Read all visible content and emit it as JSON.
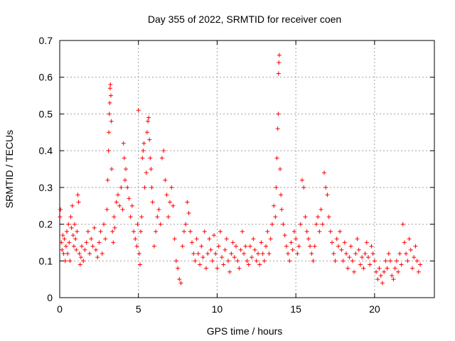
{
  "chart_data": {
    "type": "scatter",
    "title": "Day 355 of 2022, SRMTID for receiver coen",
    "xlabel": "GPS time / hours",
    "ylabel": "SRMTID / TECUs",
    "xlim": [
      0,
      23.8
    ],
    "ylim": [
      0,
      0.7
    ],
    "xticks": [
      0,
      5,
      10,
      15,
      20
    ],
    "yticks": [
      0,
      0.1,
      0.2,
      0.3,
      0.4,
      0.5,
      0.6,
      0.7
    ],
    "xtick_labels": [
      "0",
      "5",
      "10",
      "15",
      "20"
    ],
    "ytick_labels": [
      "0",
      "0.1",
      "0.2",
      "0.3",
      "0.4",
      "0.5",
      "0.6",
      "0.7"
    ],
    "grid": true,
    "marker": "+",
    "colors": {
      "points": "#ff0000",
      "axes": "#000000",
      "grid": "#a0a0a0"
    },
    "points": [
      [
        0.02,
        0.22
      ],
      [
        0.05,
        0.24
      ],
      [
        0.1,
        0.15
      ],
      [
        0.15,
        0.13
      ],
      [
        0.2,
        0.17
      ],
      [
        0.25,
        0.12
      ],
      [
        0.3,
        0.16
      ],
      [
        0.35,
        0.1
      ],
      [
        0.4,
        0.14
      ],
      [
        0.45,
        0.18
      ],
      [
        0.5,
        0.12
      ],
      [
        0.55,
        0.2
      ],
      [
        0.6,
        0.15
      ],
      [
        0.65,
        0.1
      ],
      [
        0.7,
        0.22
      ],
      [
        0.75,
        0.19
      ],
      [
        0.8,
        0.25
      ],
      [
        0.85,
        0.17
      ],
      [
        0.9,
        0.14
      ],
      [
        0.95,
        0.2
      ],
      [
        1.0,
        0.16
      ],
      [
        1.05,
        0.13
      ],
      [
        1.1,
        0.18
      ],
      [
        1.15,
        0.28
      ],
      [
        1.2,
        0.26
      ],
      [
        1.25,
        0.12
      ],
      [
        1.3,
        0.09
      ],
      [
        1.35,
        0.11
      ],
      [
        1.4,
        0.14
      ],
      [
        1.5,
        0.1
      ],
      [
        1.6,
        0.13
      ],
      [
        1.7,
        0.15
      ],
      [
        1.8,
        0.18
      ],
      [
        1.9,
        0.12
      ],
      [
        2.0,
        0.16
      ],
      [
        2.1,
        0.14
      ],
      [
        2.2,
        0.19
      ],
      [
        2.3,
        0.13
      ],
      [
        2.4,
        0.11
      ],
      [
        2.5,
        0.15
      ],
      [
        2.6,
        0.18
      ],
      [
        2.7,
        0.12
      ],
      [
        2.8,
        0.2
      ],
      [
        2.9,
        0.16
      ],
      [
        3.0,
        0.24
      ],
      [
        3.05,
        0.32
      ],
      [
        3.1,
        0.4
      ],
      [
        3.12,
        0.45
      ],
      [
        3.15,
        0.5
      ],
      [
        3.18,
        0.53
      ],
      [
        3.2,
        0.57
      ],
      [
        3.22,
        0.58
      ],
      [
        3.25,
        0.55
      ],
      [
        3.28,
        0.48
      ],
      [
        3.3,
        0.35
      ],
      [
        3.35,
        0.18
      ],
      [
        3.4,
        0.15
      ],
      [
        3.45,
        0.22
      ],
      [
        3.5,
        0.19
      ],
      [
        3.6,
        0.26
      ],
      [
        3.7,
        0.28
      ],
      [
        3.8,
        0.25
      ],
      [
        3.9,
        0.3
      ],
      [
        4.0,
        0.24
      ],
      [
        4.05,
        0.42
      ],
      [
        4.1,
        0.38
      ],
      [
        4.15,
        0.32
      ],
      [
        4.2,
        0.35
      ],
      [
        4.3,
        0.3
      ],
      [
        4.4,
        0.27
      ],
      [
        4.5,
        0.22
      ],
      [
        4.6,
        0.25
      ],
      [
        4.7,
        0.18
      ],
      [
        4.8,
        0.16
      ],
      [
        4.9,
        0.14
      ],
      [
        4.95,
        0.2
      ],
      [
        5.0,
        0.51
      ],
      [
        5.05,
        0.12
      ],
      [
        5.1,
        0.09
      ],
      [
        5.15,
        0.18
      ],
      [
        5.2,
        0.22
      ],
      [
        5.25,
        0.38
      ],
      [
        5.3,
        0.4
      ],
      [
        5.35,
        0.42
      ],
      [
        5.4,
        0.3
      ],
      [
        5.5,
        0.34
      ],
      [
        5.55,
        0.45
      ],
      [
        5.6,
        0.48
      ],
      [
        5.65,
        0.49
      ],
      [
        5.7,
        0.43
      ],
      [
        5.75,
        0.38
      ],
      [
        5.8,
        0.35
      ],
      [
        5.85,
        0.3
      ],
      [
        5.9,
        0.26
      ],
      [
        6.0,
        0.14
      ],
      [
        6.1,
        0.18
      ],
      [
        6.2,
        0.22
      ],
      [
        6.3,
        0.24
      ],
      [
        6.4,
        0.2
      ],
      [
        6.5,
        0.38
      ],
      [
        6.6,
        0.4
      ],
      [
        6.7,
        0.32
      ],
      [
        6.8,
        0.28
      ],
      [
        6.9,
        0.22
      ],
      [
        7.0,
        0.26
      ],
      [
        7.1,
        0.3
      ],
      [
        7.2,
        0.25
      ],
      [
        7.3,
        0.16
      ],
      [
        7.4,
        0.1
      ],
      [
        7.5,
        0.08
      ],
      [
        7.6,
        0.05
      ],
      [
        7.7,
        0.04
      ],
      [
        7.8,
        0.14
      ],
      [
        7.9,
        0.18
      ],
      [
        8.0,
        0.2
      ],
      [
        8.1,
        0.26
      ],
      [
        8.2,
        0.23
      ],
      [
        8.3,
        0.18
      ],
      [
        8.4,
        0.15
      ],
      [
        8.5,
        0.12
      ],
      [
        8.6,
        0.1
      ],
      [
        8.7,
        0.16
      ],
      [
        8.8,
        0.12
      ],
      [
        8.9,
        0.09
      ],
      [
        9.0,
        0.14
      ],
      [
        9.1,
        0.11
      ],
      [
        9.2,
        0.18
      ],
      [
        9.3,
        0.08
      ],
      [
        9.4,
        0.12
      ],
      [
        9.5,
        0.16
      ],
      [
        9.6,
        0.13
      ],
      [
        9.7,
        0.1
      ],
      [
        9.8,
        0.17
      ],
      [
        9.9,
        0.12
      ],
      [
        10.0,
        0.08
      ],
      [
        10.1,
        0.14
      ],
      [
        10.2,
        0.18
      ],
      [
        10.3,
        0.11
      ],
      [
        10.4,
        0.09
      ],
      [
        10.5,
        0.13
      ],
      [
        10.6,
        0.16
      ],
      [
        10.7,
        0.1
      ],
      [
        10.8,
        0.07
      ],
      [
        10.9,
        0.12
      ],
      [
        11.0,
        0.15
      ],
      [
        11.1,
        0.11
      ],
      [
        11.2,
        0.14
      ],
      [
        11.3,
        0.1
      ],
      [
        11.4,
        0.08
      ],
      [
        11.5,
        0.13
      ],
      [
        11.6,
        0.18
      ],
      [
        11.7,
        0.12
      ],
      [
        11.8,
        0.14
      ],
      [
        11.9,
        0.1
      ],
      [
        12.0,
        0.09
      ],
      [
        12.1,
        0.14
      ],
      [
        12.2,
        0.11
      ],
      [
        12.3,
        0.16
      ],
      [
        12.4,
        0.13
      ],
      [
        12.5,
        0.1
      ],
      [
        12.6,
        0.12
      ],
      [
        12.7,
        0.09
      ],
      [
        12.8,
        0.15
      ],
      [
        12.9,
        0.12
      ],
      [
        13.0,
        0.1
      ],
      [
        13.1,
        0.14
      ],
      [
        13.2,
        0.18
      ],
      [
        13.3,
        0.12
      ],
      [
        13.4,
        0.16
      ],
      [
        13.5,
        0.2
      ],
      [
        13.6,
        0.25
      ],
      [
        13.7,
        0.22
      ],
      [
        13.75,
        0.3
      ],
      [
        13.8,
        0.38
      ],
      [
        13.85,
        0.46
      ],
      [
        13.88,
        0.5
      ],
      [
        13.9,
        0.61
      ],
      [
        13.92,
        0.64
      ],
      [
        13.95,
        0.66
      ],
      [
        14.0,
        0.35
      ],
      [
        14.05,
        0.28
      ],
      [
        14.1,
        0.24
      ],
      [
        14.2,
        0.2
      ],
      [
        14.3,
        0.17
      ],
      [
        14.4,
        0.14
      ],
      [
        14.5,
        0.12
      ],
      [
        14.6,
        0.1
      ],
      [
        14.7,
        0.15
      ],
      [
        14.8,
        0.13
      ],
      [
        14.9,
        0.18
      ],
      [
        15.0,
        0.16
      ],
      [
        15.1,
        0.12
      ],
      [
        15.2,
        0.14
      ],
      [
        15.3,
        0.2
      ],
      [
        15.4,
        0.32
      ],
      [
        15.5,
        0.3
      ],
      [
        15.6,
        0.22
      ],
      [
        15.7,
        0.18
      ],
      [
        15.8,
        0.16
      ],
      [
        15.9,
        0.14
      ],
      [
        16.0,
        0.12
      ],
      [
        16.1,
        0.1
      ],
      [
        16.2,
        0.14
      ],
      [
        16.3,
        0.2
      ],
      [
        16.4,
        0.22
      ],
      [
        16.5,
        0.18
      ],
      [
        16.6,
        0.24
      ],
      [
        16.7,
        0.2
      ],
      [
        16.8,
        0.34
      ],
      [
        16.9,
        0.3
      ],
      [
        17.0,
        0.28
      ],
      [
        17.1,
        0.22
      ],
      [
        17.2,
        0.18
      ],
      [
        17.3,
        0.15
      ],
      [
        17.4,
        0.12
      ],
      [
        17.5,
        0.1
      ],
      [
        17.6,
        0.16
      ],
      [
        17.7,
        0.14
      ],
      [
        17.8,
        0.18
      ],
      [
        17.9,
        0.13
      ],
      [
        18.0,
        0.1
      ],
      [
        18.1,
        0.15
      ],
      [
        18.2,
        0.12
      ],
      [
        18.3,
        0.08
      ],
      [
        18.4,
        0.11
      ],
      [
        18.5,
        0.14
      ],
      [
        18.6,
        0.1
      ],
      [
        18.7,
        0.07
      ],
      [
        18.8,
        0.12
      ],
      [
        18.9,
        0.16
      ],
      [
        19.0,
        0.13
      ],
      [
        19.1,
        0.09
      ],
      [
        19.2,
        0.11
      ],
      [
        19.3,
        0.08
      ],
      [
        19.4,
        0.12
      ],
      [
        19.5,
        0.15
      ],
      [
        19.6,
        0.11
      ],
      [
        19.7,
        0.09
      ],
      [
        19.8,
        0.14
      ],
      [
        19.9,
        0.12
      ],
      [
        20.0,
        0.1
      ],
      [
        20.1,
        0.07
      ],
      [
        20.2,
        0.05
      ],
      [
        20.3,
        0.08
      ],
      [
        20.4,
        0.06
      ],
      [
        20.5,
        0.04
      ],
      [
        20.6,
        0.07
      ],
      [
        20.7,
        0.1
      ],
      [
        20.8,
        0.08
      ],
      [
        20.9,
        0.12
      ],
      [
        21.0,
        0.1
      ],
      [
        21.1,
        0.06
      ],
      [
        21.2,
        0.05
      ],
      [
        21.3,
        0.08
      ],
      [
        21.4,
        0.1
      ],
      [
        21.5,
        0.07
      ],
      [
        21.6,
        0.12
      ],
      [
        21.7,
        0.09
      ],
      [
        21.8,
        0.2
      ],
      [
        21.9,
        0.15
      ],
      [
        22.0,
        0.12
      ],
      [
        22.1,
        0.1
      ],
      [
        22.2,
        0.16
      ],
      [
        22.3,
        0.13
      ],
      [
        22.4,
        0.08
      ],
      [
        22.5,
        0.11
      ],
      [
        22.6,
        0.14
      ],
      [
        22.7,
        0.1
      ],
      [
        22.8,
        0.07
      ],
      [
        22.9,
        0.09
      ]
    ]
  }
}
